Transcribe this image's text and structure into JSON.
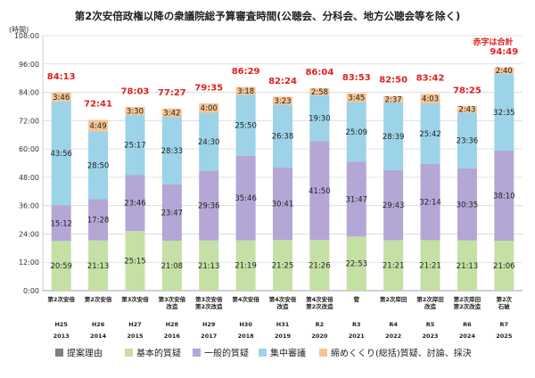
{
  "chart_data": {
    "type": "bar",
    "stacked": true,
    "title": "第2次安倍政権以降の衆議院総予算審査時間(公聴会、分科会、地方公聴会等を除く)",
    "ylabel": "(時間)",
    "note": "赤字は合計",
    "ylim": [
      0,
      108
    ],
    "yticks": [
      "0:00",
      "12:00",
      "24:00",
      "36:00",
      "48:00",
      "60:00",
      "72:00",
      "84:00",
      "96:00",
      "108:00"
    ],
    "categories": [
      {
        "cabinet": [
          "第2次安倍"
        ],
        "era": "H25",
        "year": "2013"
      },
      {
        "cabinet": [
          "第2次安倍"
        ],
        "era": "H26",
        "year": "2014"
      },
      {
        "cabinet": [
          "第3次安倍"
        ],
        "era": "H27",
        "year": "2015"
      },
      {
        "cabinet": [
          "第3次安倍",
          "改造"
        ],
        "era": "H28",
        "year": "2016"
      },
      {
        "cabinet": [
          "第3次安倍",
          "第2次改造"
        ],
        "era": "H29",
        "year": "2017"
      },
      {
        "cabinet": [
          "第4次安倍"
        ],
        "era": "H30",
        "year": "2018"
      },
      {
        "cabinet": [
          "第4次安倍",
          "改造"
        ],
        "era": "H31",
        "year": "2019"
      },
      {
        "cabinet": [
          "第4次安倍",
          "第2次改造"
        ],
        "era": "R2",
        "year": "2020"
      },
      {
        "cabinet": [
          "菅"
        ],
        "era": "R3",
        "year": "2021"
      },
      {
        "cabinet": [
          "第2次岸田"
        ],
        "era": "R4",
        "year": "2022"
      },
      {
        "cabinet": [
          "第2次岸田",
          "改造"
        ],
        "era": "R5",
        "year": "2023"
      },
      {
        "cabinet": [
          "第2次岸田",
          "第2次改造"
        ],
        "era": "R6",
        "year": "2024"
      },
      {
        "cabinet": [
          "第2次",
          "石破"
        ],
        "era": "R7",
        "year": "2025"
      }
    ],
    "series": [
      {
        "name": "提案理由",
        "color": "#7f7f7f",
        "values": [
          0.02,
          0.02,
          0.02,
          0.02,
          0.02,
          0.02,
          0.02,
          0.02,
          0.02,
          0.02,
          0.02,
          0.02,
          0.02
        ],
        "labels": [
          "",
          "",
          "",
          "",
          "",
          "",
          "",
          "",
          "",
          "",
          "",
          "",
          ""
        ]
      },
      {
        "name": "基本的質疑",
        "color": "#c5e0a5",
        "values": [
          20.983,
          21.217,
          25.25,
          21.133,
          21.217,
          21.317,
          21.417,
          21.433,
          22.883,
          21.35,
          21.35,
          21.217,
          21.1
        ],
        "labels": [
          "20:59",
          "21:13",
          "25:15",
          "21:08",
          "21:13",
          "21:19",
          "21:25",
          "21:26",
          "22:53",
          "21:21",
          "21:21",
          "21:13",
          "21:06"
        ]
      },
      {
        "name": "一般的質疑",
        "color": "#b4a7d6",
        "values": [
          15.2,
          17.467,
          23.767,
          23.783,
          29.6,
          35.767,
          30.683,
          41.833,
          31.783,
          29.717,
          32.233,
          30.583,
          38.167
        ],
        "labels": [
          "15:12",
          "17:28",
          "23:46",
          "23:47",
          "29:36",
          "35:46",
          "30:41",
          "41:50",
          "31:47",
          "29:43",
          "32:14",
          "30:35",
          "38:10"
        ]
      },
      {
        "name": "集中審議",
        "color": "#9dd3e8",
        "values": [
          43.933,
          28.833,
          25.283,
          28.55,
          24.5,
          25.833,
          26.633,
          19.5,
          25.15,
          28.65,
          25.7,
          23.6,
          32.583
        ],
        "labels": [
          "43:56",
          "28:50",
          "25:17",
          "28:33",
          "24:30",
          "25:50",
          "26:38",
          "19:30",
          "25:09",
          "28:39",
          "25:42",
          "23:36",
          "32:35"
        ]
      },
      {
        "name": "締めくくり(総括)質疑、討論、採決",
        "color": "#f6c493",
        "values": [
          3.767,
          4.817,
          3.5,
          3.7,
          4.0,
          3.3,
          3.383,
          2.967,
          3.75,
          2.617,
          4.05,
          2.717,
          2.667
        ],
        "labels": [
          "3:46",
          "4:49",
          "3:30",
          "3:42",
          "4:00",
          "3:18",
          "3:23",
          "2:58",
          "3:45",
          "2:37",
          "4:03",
          "2:43",
          "2:40"
        ]
      }
    ],
    "totals": [
      84.217,
      72.683,
      78.05,
      77.45,
      79.583,
      86.483,
      82.4,
      86.067,
      83.883,
      82.833,
      83.7,
      78.417,
      94.817
    ],
    "total_labels": [
      "84:13",
      "72:41",
      "78:03",
      "77:27",
      "79:35",
      "86:29",
      "82:24",
      "86:04",
      "83:53",
      "82:50",
      "83:42",
      "78:25",
      "94:49"
    ]
  }
}
